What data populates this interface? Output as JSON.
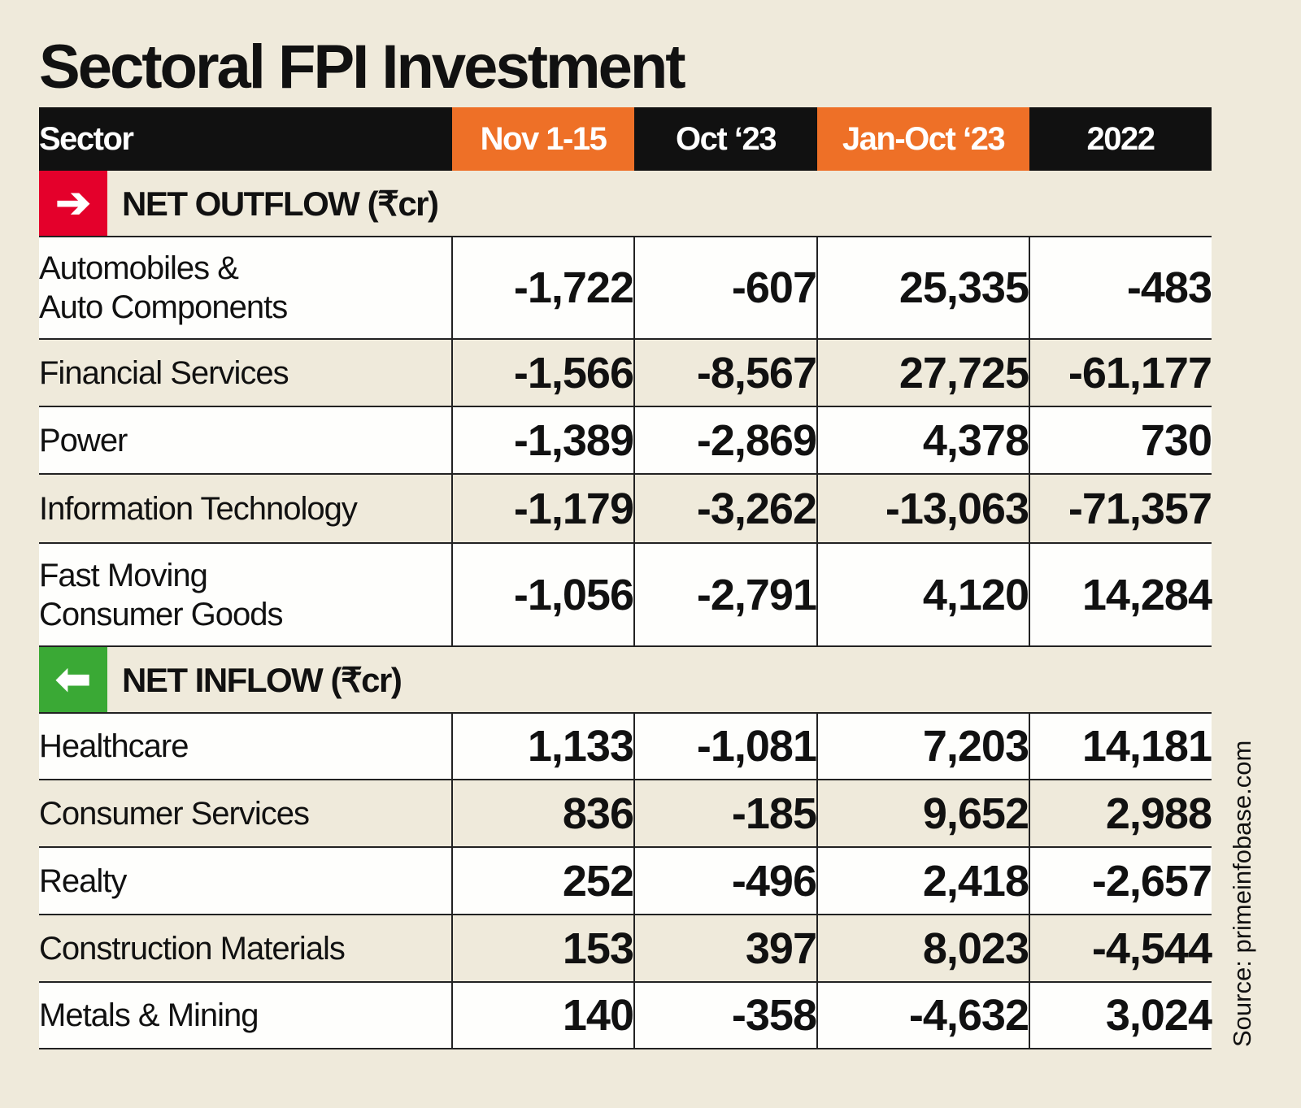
{
  "title": "Sectoral FPI Investment",
  "source": "Source: primeinfobase.com",
  "colors": {
    "header_bg": "#111111",
    "highlight": "#ee7027",
    "outflow": "#e4002b",
    "inflow": "#3aa935",
    "row_white": "#fefefc",
    "row_beige": "#efeadb"
  },
  "chart_data": {
    "type": "table",
    "title": "Sectoral FPI Investment",
    "columns": [
      "Sector",
      "Nov 1-15",
      "Oct ‘23",
      "Jan-Oct ‘23",
      "2022"
    ],
    "highlighted_columns": [
      "Nov 1-15",
      "Jan-Oct ‘23"
    ],
    "sections": [
      {
        "label": "NET OUTFLOW (₹cr)",
        "icon": "arrow-right-icon",
        "rows": [
          {
            "sector": [
              "Automobiles &",
              "Auto Components"
            ],
            "values": [
              "-1,722",
              "-607",
              "25,335",
              "-483"
            ]
          },
          {
            "sector": [
              "Financial Services"
            ],
            "values": [
              "-1,566",
              "-8,567",
              "27,725",
              "-61,177"
            ]
          },
          {
            "sector": [
              "Power"
            ],
            "values": [
              "-1,389",
              "-2,869",
              "4,378",
              "730"
            ]
          },
          {
            "sector": [
              "Information Technology"
            ],
            "values": [
              "-1,179",
              "-3,262",
              "-13,063",
              "-71,357"
            ]
          },
          {
            "sector": [
              "Fast Moving",
              "Consumer Goods"
            ],
            "values": [
              "-1,056",
              "-2,791",
              "4,120",
              "14,284"
            ]
          }
        ]
      },
      {
        "label": "NET INFLOW (₹cr)",
        "icon": "arrow-left-icon",
        "rows": [
          {
            "sector": [
              "Healthcare"
            ],
            "values": [
              "1,133",
              "-1,081",
              "7,203",
              "14,181"
            ]
          },
          {
            "sector": [
              "Consumer Services"
            ],
            "values": [
              "836",
              "-185",
              "9,652",
              "2,988"
            ]
          },
          {
            "sector": [
              "Realty"
            ],
            "values": [
              "252",
              "-496",
              "2,418",
              "-2,657"
            ]
          },
          {
            "sector": [
              "Construction Materials"
            ],
            "values": [
              "153",
              "397",
              "8,023",
              "-4,544"
            ]
          },
          {
            "sector": [
              "Metals & Mining"
            ],
            "values": [
              "140",
              "-358",
              "-4,632",
              "3,024"
            ]
          }
        ]
      }
    ]
  }
}
